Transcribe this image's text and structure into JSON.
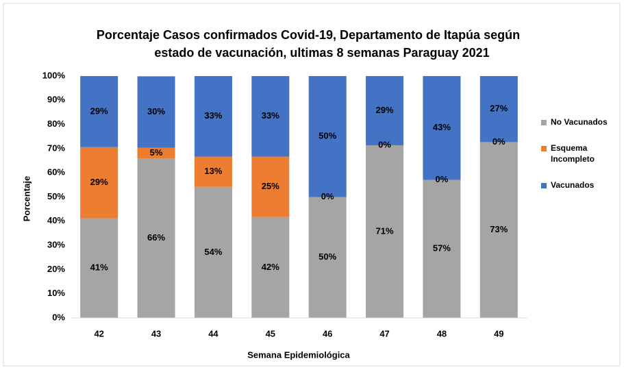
{
  "chart_data": {
    "type": "stacked_bar",
    "title": [
      "Porcentaje Casos confirmados Covid-19, Departamento de Itapúa según",
      "estado de vacunación, ultimas 8 semanas Paraguay 2021"
    ],
    "x_label": "Semana Epidemiológica",
    "y_label": "Porcentaje",
    "categories": [
      "42",
      "43",
      "44",
      "45",
      "46",
      "47",
      "48",
      "49"
    ],
    "series": [
      {
        "name": "No Vacunados",
        "color": "#a5a5a5",
        "values": [
          41.2,
          65.9,
          54.2,
          41.7,
          50,
          71.4,
          57.1,
          72.7
        ],
        "value_labels": [
          "41%",
          "66%",
          "54%",
          "42%",
          "50%",
          "71%",
          "57%",
          "73%"
        ]
      },
      {
        "name": "Esquema Incompleto",
        "color": "#ed7d31",
        "values": [
          29.4,
          4.5,
          12.5,
          25,
          0,
          0,
          0,
          0
        ],
        "value_labels": [
          "29%",
          "5%",
          "13%",
          "25%",
          "0%",
          "0%",
          "0%",
          "0%"
        ]
      },
      {
        "name": "Vacunados",
        "color": "#4472c4",
        "values": [
          29.4,
          29.5,
          33.3,
          33.3,
          50,
          28.6,
          42.9,
          27.3
        ],
        "value_labels": [
          "29%",
          "30%",
          "33%",
          "33%",
          "50%",
          "29%",
          "43%",
          "27%"
        ]
      }
    ],
    "ylim": [
      0,
      100
    ],
    "yticks": [
      {
        "value": 0,
        "label": "0%"
      },
      {
        "value": 10,
        "label": "10%"
      },
      {
        "value": 20,
        "label": "20%"
      },
      {
        "value": 30,
        "label": "30%"
      },
      {
        "value": 40,
        "label": "40%"
      },
      {
        "value": 50,
        "label": "50%"
      },
      {
        "value": 60,
        "label": "60%"
      },
      {
        "value": 70,
        "label": "70%"
      },
      {
        "value": 80,
        "label": "80%"
      },
      {
        "value": 90,
        "label": "90%"
      },
      {
        "value": 100,
        "label": "100%"
      }
    ],
    "grid": false,
    "legend": "right"
  }
}
